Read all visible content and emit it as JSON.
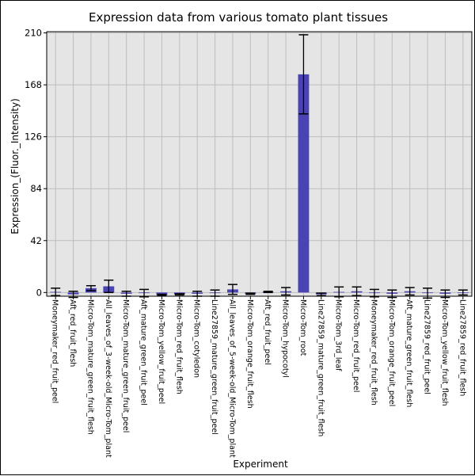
{
  "chart_data": {
    "type": "bar",
    "title": "Expression data from various tomato plant tissues",
    "xlabel": "Experiment",
    "ylabel": "Expression_(Fluor._Intensity)",
    "ylim": [
      -3,
      211
    ],
    "yticks": [
      0,
      42,
      84,
      126,
      168,
      210
    ],
    "grid": true,
    "bar_color": "#4a43b3",
    "plot_bg": "#e5e5e5",
    "grid_color": "#bdbdbd",
    "categories": [
      "Moneymaker_red_fruit_peel",
      "Aft_red_fruit_flesh",
      "Micro-Tom_mature_green_fruit_flesh",
      "All_leaves_of_3-week-old_Micro-Tom_plant",
      "Micro-Tom_mature_green_fruit_peel",
      "Aft_mature_green_fruit_peel",
      "Micro-Tom_yellow_fruit_peel",
      "Micro-Tom_red_fruit_flesh",
      "Micro-Tom_cotyledon",
      "Line27859_mature_green_fruit_peel",
      "All_leaves_of_5-week-old_Micro-Tom_plant",
      "Micro-Tom_orange_fruit_flesh",
      "Aft_red_fruit_peel",
      "Micro-Tom_hypocotyl",
      "Micro-Tom_root",
      "Line27859_mature_green_fruit_flesh",
      "Micro-Tom_3rd_leaf",
      "Micro-Tom_red_fruit_peel",
      "Moneymaker_red_fruit_flesh",
      "Micro-Tom_orange_fruit_peel",
      "Aft_mature_green_fruit_flesh",
      "Line27859_red_fruit_peel",
      "Micro-Tom_yellow_fruit_flesh",
      "Line27859_red_fruit_flesh"
    ],
    "values": [
      0.5,
      -1.5,
      3.5,
      5,
      -1,
      -0.5,
      -2,
      -1.5,
      -1,
      -0.5,
      2.5,
      -1,
      0.5,
      1,
      176.5,
      -1.5,
      0.5,
      1,
      -0.5,
      -1,
      1,
      -0.5,
      -1,
      0
    ],
    "errors": [
      3,
      2.5,
      2,
      5,
      2,
      3,
      0.5,
      0.5,
      2,
      2.5,
      4,
      0.5,
      0.5,
      3,
      32,
      1,
      4,
      3.5,
      3,
      3,
      3,
      4,
      3,
      2
    ]
  }
}
